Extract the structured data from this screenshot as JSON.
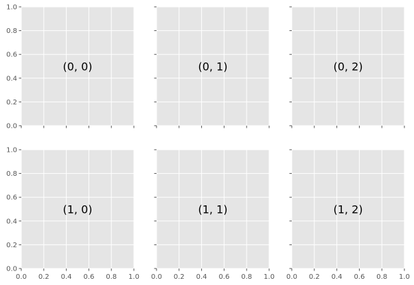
{
  "chart_data": {
    "type": "scatter",
    "layout": {
      "rows": 2,
      "cols": 3,
      "sharex": true,
      "sharey": true
    },
    "xlim": [
      0,
      1
    ],
    "ylim": [
      0,
      1
    ],
    "grid": true,
    "colors": {
      "panel_bg": "#e5e5e5",
      "grid": "#ffffff",
      "tick": "#555555",
      "text": "#000000"
    },
    "xticks": [
      "0.0",
      "0.2",
      "0.4",
      "0.6",
      "0.8",
      "1.0"
    ],
    "yticks": [
      "0.0",
      "0.2",
      "0.4",
      "0.6",
      "0.8",
      "1.0"
    ],
    "xtick_values": [
      0,
      0.2,
      0.4,
      0.6,
      0.8,
      1.0
    ],
    "ytick_values": [
      0,
      0.2,
      0.4,
      0.6,
      0.8,
      1.0
    ],
    "panels": [
      {
        "row": 0,
        "col": 0,
        "label": "(0, 0)",
        "label_x": 0.5,
        "label_y": 0.5
      },
      {
        "row": 0,
        "col": 1,
        "label": "(0, 1)",
        "label_x": 0.5,
        "label_y": 0.5
      },
      {
        "row": 0,
        "col": 2,
        "label": "(0, 2)",
        "label_x": 0.5,
        "label_y": 0.5
      },
      {
        "row": 1,
        "col": 0,
        "label": "(1, 0)",
        "label_x": 0.5,
        "label_y": 0.5
      },
      {
        "row": 1,
        "col": 1,
        "label": "(1, 1)",
        "label_x": 0.5,
        "label_y": 0.5
      },
      {
        "row": 1,
        "col": 2,
        "label": "(1, 2)",
        "label_x": 0.5,
        "label_y": 0.5
      }
    ]
  }
}
